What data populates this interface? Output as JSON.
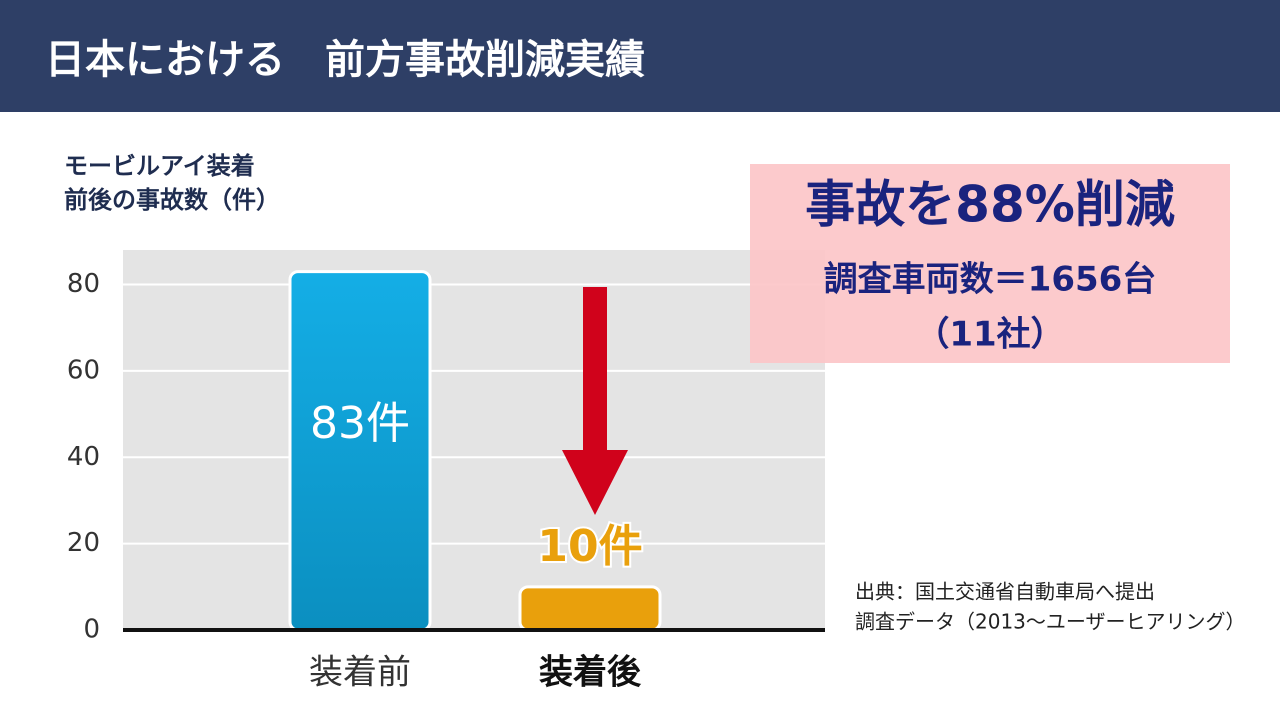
{
  "header": {
    "title": "日本における　前方事故削減実績"
  },
  "chart_data": {
    "type": "bar",
    "y_label": [
      "モービルアイ装着",
      "前後の事故数（件）"
    ],
    "categories": [
      "装着前",
      "装着後"
    ],
    "values": [
      83,
      10
    ],
    "value_labels": [
      "83件",
      "10件"
    ],
    "colors": [
      "#12a3dc",
      "#e9a00c"
    ],
    "ylim": [
      0,
      88
    ],
    "yticks": [
      0,
      20,
      40,
      60,
      80
    ],
    "grid": true
  },
  "callout": {
    "headline": "事故を88%削減",
    "line1": "調査車両数＝1656台",
    "line2": "（11社）"
  },
  "source": [
    "出典：国土交通省自動車局へ提出",
    "調査データ（2013～ユーザーヒアリング）"
  ]
}
